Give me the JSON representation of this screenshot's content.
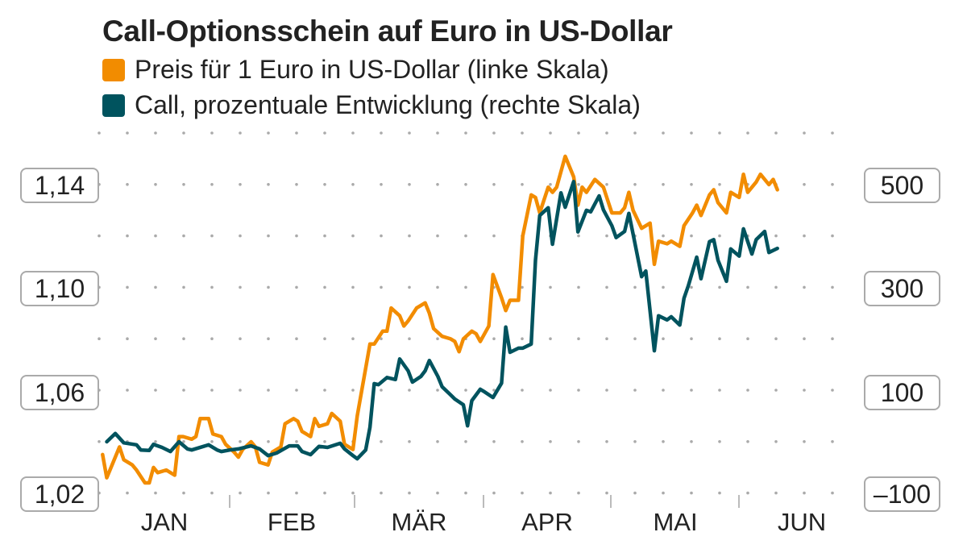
{
  "chart_data": {
    "type": "line",
    "title": "Call-Optionsschein auf Euro in US-Dollar",
    "left_axis": {
      "ticks": [
        "1,02",
        "1,06",
        "1,10",
        "1,14"
      ],
      "range": [
        1.02,
        1.16
      ]
    },
    "right_axis": {
      "ticks": [
        "–100",
        "100",
        "300",
        "500"
      ],
      "range": [
        -100,
        600
      ]
    },
    "x_axis": {
      "ticks": [
        "JAN",
        "FEB",
        "MÄR",
        "APR",
        "MAI",
        "JUN"
      ]
    },
    "grid": true,
    "legend_placement": "top-left",
    "series": [
      {
        "name": "Preis für 1 Euro in US-Dollar (linke Skala)",
        "axis": "left",
        "color": "#F28C00",
        "points": [
          [
            "01-02",
            1.035
          ],
          [
            "01-03",
            1.026
          ],
          [
            "01-04",
            1.03
          ],
          [
            "01-06",
            1.038
          ],
          [
            "01-07",
            1.033
          ],
          [
            "01-09",
            1.031
          ],
          [
            "01-10",
            1.029
          ],
          [
            "01-12",
            1.024
          ],
          [
            "01-13",
            1.024
          ],
          [
            "01-14",
            1.03
          ],
          [
            "01-15",
            1.028
          ],
          [
            "01-17",
            1.029
          ],
          [
            "01-19",
            1.027
          ],
          [
            "01-20",
            1.042
          ],
          [
            "01-21",
            1.042
          ],
          [
            "01-23",
            1.041
          ],
          [
            "01-24",
            1.042
          ],
          [
            "01-25",
            1.049
          ],
          [
            "01-27",
            1.049
          ],
          [
            "01-28",
            1.043
          ],
          [
            "01-30",
            1.042
          ],
          [
            "01-31",
            1.039
          ],
          [
            "02-02",
            1.036
          ],
          [
            "02-03",
            1.034
          ],
          [
            "02-04",
            1.037
          ],
          [
            "02-06",
            1.04
          ],
          [
            "02-07",
            1.038
          ],
          [
            "02-08",
            1.032
          ],
          [
            "02-10",
            1.031
          ],
          [
            "02-11",
            1.036
          ],
          [
            "02-13",
            1.038
          ],
          [
            "02-14",
            1.047
          ],
          [
            "02-16",
            1.049
          ],
          [
            "02-17",
            1.048
          ],
          [
            "02-18",
            1.044
          ],
          [
            "02-20",
            1.042
          ],
          [
            "02-21",
            1.049
          ],
          [
            "02-22",
            1.046
          ],
          [
            "02-24",
            1.047
          ],
          [
            "02-25",
            1.051
          ],
          [
            "02-27",
            1.048
          ],
          [
            "02-28",
            1.039
          ],
          [
            "03-02",
            1.037
          ],
          [
            "03-03",
            1.05
          ],
          [
            "03-06",
            1.078
          ],
          [
            "03-07",
            1.078
          ],
          [
            "03-09",
            1.083
          ],
          [
            "03-10",
            1.083
          ],
          [
            "03-11",
            1.092
          ],
          [
            "03-13",
            1.089
          ],
          [
            "03-14",
            1.085
          ],
          [
            "03-15",
            1.087
          ],
          [
            "03-17",
            1.092
          ],
          [
            "03-19",
            1.094
          ],
          [
            "03-20",
            1.09
          ],
          [
            "03-21",
            1.084
          ],
          [
            "03-23",
            1.081
          ],
          [
            "03-25",
            1.08
          ],
          [
            "03-26",
            1.079
          ],
          [
            "03-27",
            1.075
          ],
          [
            "03-28",
            1.08
          ],
          [
            "03-30",
            1.083
          ],
          [
            "03-31",
            1.082
          ],
          [
            "04-01",
            1.079
          ],
          [
            "04-03",
            1.085
          ],
          [
            "04-04",
            1.105
          ],
          [
            "04-06",
            1.096
          ],
          [
            "04-07",
            1.091
          ],
          [
            "04-08",
            1.095
          ],
          [
            "04-10",
            1.095
          ],
          [
            "04-11",
            1.12
          ],
          [
            "04-13",
            1.136
          ],
          [
            "04-14",
            1.135
          ],
          [
            "04-15",
            1.129
          ],
          [
            "04-17",
            1.139
          ],
          [
            "04-18",
            1.137
          ],
          [
            "04-19",
            1.139
          ],
          [
            "04-21",
            1.151
          ],
          [
            "04-23",
            1.143
          ],
          [
            "04-24",
            1.132
          ],
          [
            "04-25",
            1.139
          ],
          [
            "04-26",
            1.137
          ],
          [
            "04-28",
            1.142
          ],
          [
            "04-30",
            1.139
          ],
          [
            "05-01",
            1.134
          ],
          [
            "05-02",
            1.129
          ],
          [
            "05-04",
            1.129
          ],
          [
            "05-05",
            1.131
          ],
          [
            "05-06",
            1.137
          ],
          [
            "05-07",
            1.13
          ],
          [
            "05-09",
            1.123
          ],
          [
            "05-11",
            1.125
          ],
          [
            "05-12",
            1.109
          ],
          [
            "05-13",
            1.118
          ],
          [
            "05-15",
            1.117
          ],
          [
            "05-16",
            1.118
          ],
          [
            "05-18",
            1.116
          ],
          [
            "05-19",
            1.124
          ],
          [
            "05-21",
            1.129
          ],
          [
            "05-22",
            1.132
          ],
          [
            "05-23",
            1.128
          ],
          [
            "05-25",
            1.136
          ],
          [
            "05-26",
            1.138
          ],
          [
            "05-27",
            1.133
          ],
          [
            "05-29",
            1.129
          ],
          [
            "05-30",
            1.137
          ],
          [
            "06-01",
            1.135
          ],
          [
            "06-02",
            1.144
          ],
          [
            "06-03",
            1.137
          ],
          [
            "06-05",
            1.141
          ],
          [
            "06-06",
            1.144
          ],
          [
            "06-08",
            1.14
          ],
          [
            "06-09",
            1.142
          ],
          [
            "06-10",
            1.138
          ]
        ]
      },
      {
        "name": "Call, prozentuale Entwicklung (rechte Skala)",
        "axis": "right",
        "color": "#00535E",
        "points": [
          [
            "01-03",
            0
          ],
          [
            "01-05",
            16
          ],
          [
            "01-07",
            -2
          ],
          [
            "01-10",
            -6
          ],
          [
            "01-11",
            -16
          ],
          [
            "01-13",
            -17
          ],
          [
            "01-14",
            -5
          ],
          [
            "01-16",
            -11
          ],
          [
            "01-18",
            -19
          ],
          [
            "01-20",
            0
          ],
          [
            "01-22",
            -14
          ],
          [
            "01-23",
            -16
          ],
          [
            "01-27",
            -6
          ],
          [
            "01-29",
            -16
          ],
          [
            "01-30",
            -19
          ],
          [
            "02-01",
            -16
          ],
          [
            "02-03",
            -14
          ],
          [
            "02-06",
            -8
          ],
          [
            "02-08",
            -14
          ],
          [
            "02-10",
            -27
          ],
          [
            "02-12",
            -22
          ],
          [
            "02-15",
            -8
          ],
          [
            "02-17",
            -8
          ],
          [
            "02-18",
            -19
          ],
          [
            "02-20",
            -25
          ],
          [
            "02-22",
            -9
          ],
          [
            "02-24",
            -11
          ],
          [
            "02-27",
            -3
          ],
          [
            "02-28",
            -14
          ],
          [
            "03-02",
            -27
          ],
          [
            "03-03",
            -33
          ],
          [
            "03-05",
            -16
          ],
          [
            "03-06",
            28
          ],
          [
            "03-07",
            113
          ],
          [
            "03-08",
            111
          ],
          [
            "03-10",
            125
          ],
          [
            "03-12",
            121
          ],
          [
            "03-13",
            161
          ],
          [
            "03-15",
            138
          ],
          [
            "03-16",
            116
          ],
          [
            "03-18",
            127
          ],
          [
            "03-19",
            138
          ],
          [
            "03-20",
            158
          ],
          [
            "03-22",
            127
          ],
          [
            "03-23",
            107
          ],
          [
            "03-25",
            91
          ],
          [
            "03-26",
            83
          ],
          [
            "03-28",
            72
          ],
          [
            "03-29",
            31
          ],
          [
            "03-30",
            80
          ],
          [
            "04-01",
            102
          ],
          [
            "04-02",
            97
          ],
          [
            "04-04",
            86
          ],
          [
            "04-06",
            114
          ],
          [
            "04-07",
            223
          ],
          [
            "04-08",
            174
          ],
          [
            "04-10",
            182
          ],
          [
            "04-11",
            182
          ],
          [
            "04-13",
            190
          ],
          [
            "04-14",
            353
          ],
          [
            "04-15",
            440
          ],
          [
            "04-17",
            455
          ],
          [
            "04-18",
            384
          ],
          [
            "04-20",
            484
          ],
          [
            "04-21",
            456
          ],
          [
            "04-23",
            506
          ],
          [
            "04-24",
            408
          ],
          [
            "04-26",
            450
          ],
          [
            "04-27",
            447
          ],
          [
            "04-29",
            478
          ],
          [
            "04-30",
            451
          ],
          [
            "05-02",
            420
          ],
          [
            "05-03",
            397
          ],
          [
            "05-05",
            409
          ],
          [
            "05-06",
            444
          ],
          [
            "05-07",
            404
          ],
          [
            "05-09",
            321
          ],
          [
            "05-10",
            332
          ],
          [
            "05-12",
            177
          ],
          [
            "05-13",
            245
          ],
          [
            "05-15",
            237
          ],
          [
            "05-16",
            243
          ],
          [
            "05-18",
            227
          ],
          [
            "05-19",
            279
          ],
          [
            "05-20",
            303
          ],
          [
            "05-22",
            359
          ],
          [
            "05-23",
            317
          ],
          [
            "05-25",
            389
          ],
          [
            "05-26",
            393
          ],
          [
            "05-27",
            353
          ],
          [
            "05-29",
            312
          ],
          [
            "05-30",
            375
          ],
          [
            "06-01",
            361
          ],
          [
            "06-02",
            414
          ],
          [
            "06-04",
            365
          ],
          [
            "06-05",
            393
          ],
          [
            "06-07",
            409
          ],
          [
            "06-08",
            368
          ],
          [
            "06-10",
            376
          ]
        ]
      }
    ]
  }
}
